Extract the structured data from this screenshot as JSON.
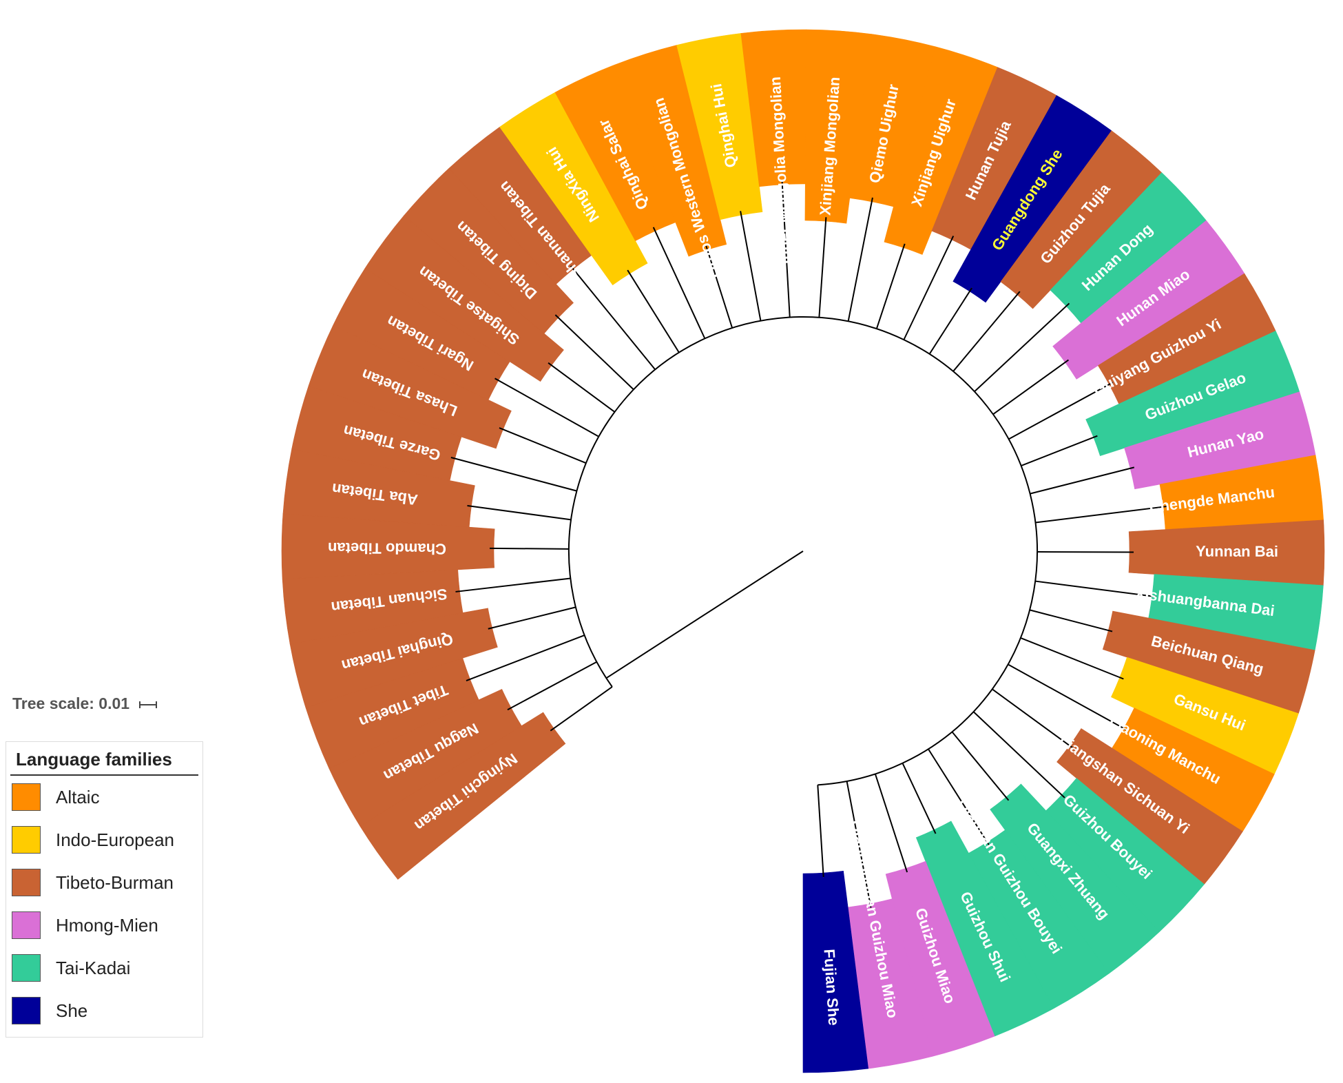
{
  "tree_scale_label": "Tree scale: 0.01",
  "legend": {
    "title": "Language families",
    "items": [
      {
        "label": "Altaic",
        "color": "#FF8C00"
      },
      {
        "label": "Indo-European",
        "color": "#FFCC00"
      },
      {
        "label": "Tibeto-Burman",
        "color": "#C96333"
      },
      {
        "label": "Hmong-Mien",
        "color": "#DA70D6"
      },
      {
        "label": "Tai-Kadai",
        "color": "#33CC99"
      },
      {
        "label": "She",
        "color": "#000099"
      }
    ]
  },
  "tree": {
    "type": "circular-phylogeny",
    "leaves": [
      {
        "label": "Nyingchi Tibetan",
        "family": "Tibeto-Burman"
      },
      {
        "label": "Nagqu Tibetan",
        "family": "Tibeto-Burman"
      },
      {
        "label": "Tibet Tibetan",
        "family": "Tibeto-Burman"
      },
      {
        "label": "Qinghai Tibetan",
        "family": "Tibeto-Burman"
      },
      {
        "label": "Sichuan Tibetan",
        "family": "Tibeto-Burman"
      },
      {
        "label": "Chamdo Tibetan",
        "family": "Tibeto-Burman"
      },
      {
        "label": "Aba Tibetan",
        "family": "Tibeto-Burman"
      },
      {
        "label": "Garze Tibetan",
        "family": "Tibeto-Burman"
      },
      {
        "label": "Lhasa Tibetan",
        "family": "Tibeto-Burman"
      },
      {
        "label": "Ngari Tibetan",
        "family": "Tibeto-Burman"
      },
      {
        "label": "Shigatse Tibetan",
        "family": "Tibeto-Burman"
      },
      {
        "label": "Diqing Tibetan",
        "family": "Tibeto-Burman"
      },
      {
        "label": "Shannan Tibetan",
        "family": "Tibeto-Burman"
      },
      {
        "label": "NingXia Hui",
        "family": "Indo-European"
      },
      {
        "label": "Qinghai Salar",
        "family": "Altaic"
      },
      {
        "label": "Ordos Western Mongolian",
        "family": "Altaic"
      },
      {
        "label": "Qinghai Hui",
        "family": "Indo-European"
      },
      {
        "label": "Inner Mongolia Mongolian",
        "family": "Altaic"
      },
      {
        "label": "Xinjiang Mongolian",
        "family": "Altaic"
      },
      {
        "label": "Qiemo Uighur",
        "family": "Altaic"
      },
      {
        "label": "Xinjiang Uighur",
        "family": "Altaic"
      },
      {
        "label": "Hunan Tujia",
        "family": "Tibeto-Burman"
      },
      {
        "label": "Guangdong She",
        "family": "She"
      },
      {
        "label": "Guizhou Tujia",
        "family": "Tibeto-Burman"
      },
      {
        "label": "Hunan Dong",
        "family": "Tai-Kadai"
      },
      {
        "label": "Hunan Miao",
        "family": "Hmong-Mien"
      },
      {
        "label": "Guiyang Guizhou Yi",
        "family": "Tibeto-Burman"
      },
      {
        "label": "Guizhou Gelao",
        "family": "Tai-Kadai"
      },
      {
        "label": "Hunan Yao",
        "family": "Hmong-Mien"
      },
      {
        "label": "Chengde Manchu",
        "family": "Altaic"
      },
      {
        "label": "Yunnan Bai",
        "family": "Tibeto-Burman"
      },
      {
        "label": "Xishuangbanna Dai",
        "family": "Tai-Kadai"
      },
      {
        "label": "Beichuan Qiang",
        "family": "Tibeto-Burman"
      },
      {
        "label": "Gansu Hui",
        "family": "Indo-European"
      },
      {
        "label": "Liaoning Manchu",
        "family": "Altaic"
      },
      {
        "label": "Liangshan Sichuan Yi",
        "family": "Tibeto-Burman"
      },
      {
        "label": "Guizhou Bouyei",
        "family": "Tai-Kadai"
      },
      {
        "label": "Guangxi Zhuang",
        "family": "Tai-Kadai"
      },
      {
        "label": "Qiannan Guizhou Bouyei",
        "family": "Tai-Kadai"
      },
      {
        "label": "Guizhou Shui",
        "family": "Tai-Kadai"
      },
      {
        "label": "Guizhou Miao",
        "family": "Hmong-Mien"
      },
      {
        "label": "Qiandongnan Guizhou Miao",
        "family": "Hmong-Mien"
      },
      {
        "label": "Fujian She",
        "family": "She"
      }
    ],
    "highlighted_leaf": "Guangdong She",
    "highlight_color": "#FFFF33",
    "label_color": "#FFFFFF"
  }
}
